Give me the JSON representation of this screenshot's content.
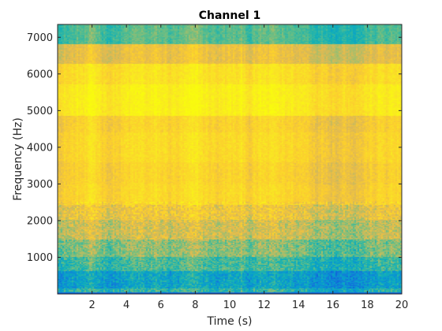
{
  "chart_data": {
    "type": "heatmap",
    "title": "Channel 1",
    "xlabel": "Time (s)",
    "ylabel": "Frequency (Hz)",
    "xlim": [
      0,
      20
    ],
    "ylim": [
      0,
      7350
    ],
    "x_ticks": [
      2,
      4,
      6,
      8,
      10,
      12,
      14,
      16,
      18,
      20
    ],
    "y_ticks": [
      1000,
      2000,
      3000,
      4000,
      5000,
      6000,
      7000
    ],
    "colormap": "parula",
    "grid": false,
    "band_levels": [
      {
        "freq_from": 0,
        "freq_to": 150,
        "level": 0.42
      },
      {
        "freq_from": 150,
        "freq_to": 600,
        "level": 0.32
      },
      {
        "freq_from": 600,
        "freq_to": 1000,
        "level": 0.45
      },
      {
        "freq_from": 1000,
        "freq_to": 1450,
        "level": 0.55
      },
      {
        "freq_from": 1450,
        "freq_to": 2000,
        "level": 0.66
      },
      {
        "freq_from": 2000,
        "freq_to": 2400,
        "level": 0.74
      },
      {
        "freq_from": 2400,
        "freq_to": 3000,
        "level": 0.82
      },
      {
        "freq_from": 3000,
        "freq_to": 3600,
        "level": 0.8
      },
      {
        "freq_from": 3600,
        "freq_to": 4400,
        "level": 0.83
      },
      {
        "freq_from": 4400,
        "freq_to": 4850,
        "level": 0.8
      },
      {
        "freq_from": 4850,
        "freq_to": 5700,
        "level": 0.92
      },
      {
        "freq_from": 5700,
        "freq_to": 6250,
        "level": 0.86
      },
      {
        "freq_from": 6250,
        "freq_to": 6800,
        "level": 0.72
      },
      {
        "freq_from": 6800,
        "freq_to": 7350,
        "level": 0.48
      }
    ]
  },
  "colors": {
    "axis": "#262626",
    "background": "#ffffff"
  }
}
